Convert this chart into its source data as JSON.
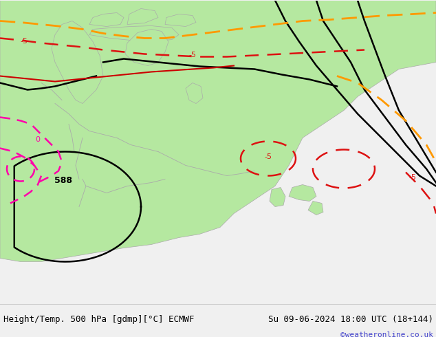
{
  "title_left": "Height/Temp. 500 hPa [gdmp][°C] ECMWF",
  "title_right": "Su 09-06-2024 18:00 UTC (18+144)",
  "credit": "©weatheronline.co.uk",
  "background_color": "#e8e8e8",
  "land_color_green": "#b5e8a0",
  "land_color_light": "#d8f0c8",
  "sea_color": "#dde8f0",
  "border_color": "#aaaaaa",
  "bottom_bar_color": "#f0f0f0",
  "text_color": "#000000",
  "credit_color": "#4444cc",
  "contour_black_color": "#000000",
  "contour_orange_color": "#ff9900",
  "contour_red_color": "#cc0000",
  "contour_darkred_color": "#dd1111",
  "contour_pink_color": "#ff00aa",
  "label_588": "588",
  "label_minus5_1": "-5",
  "label_minus5_2": "-5",
  "label_minus5_3": "-5",
  "label_minus5_4": "-5",
  "label_0": "0",
  "figsize": [
    6.34,
    4.9
  ],
  "dpi": 100
}
